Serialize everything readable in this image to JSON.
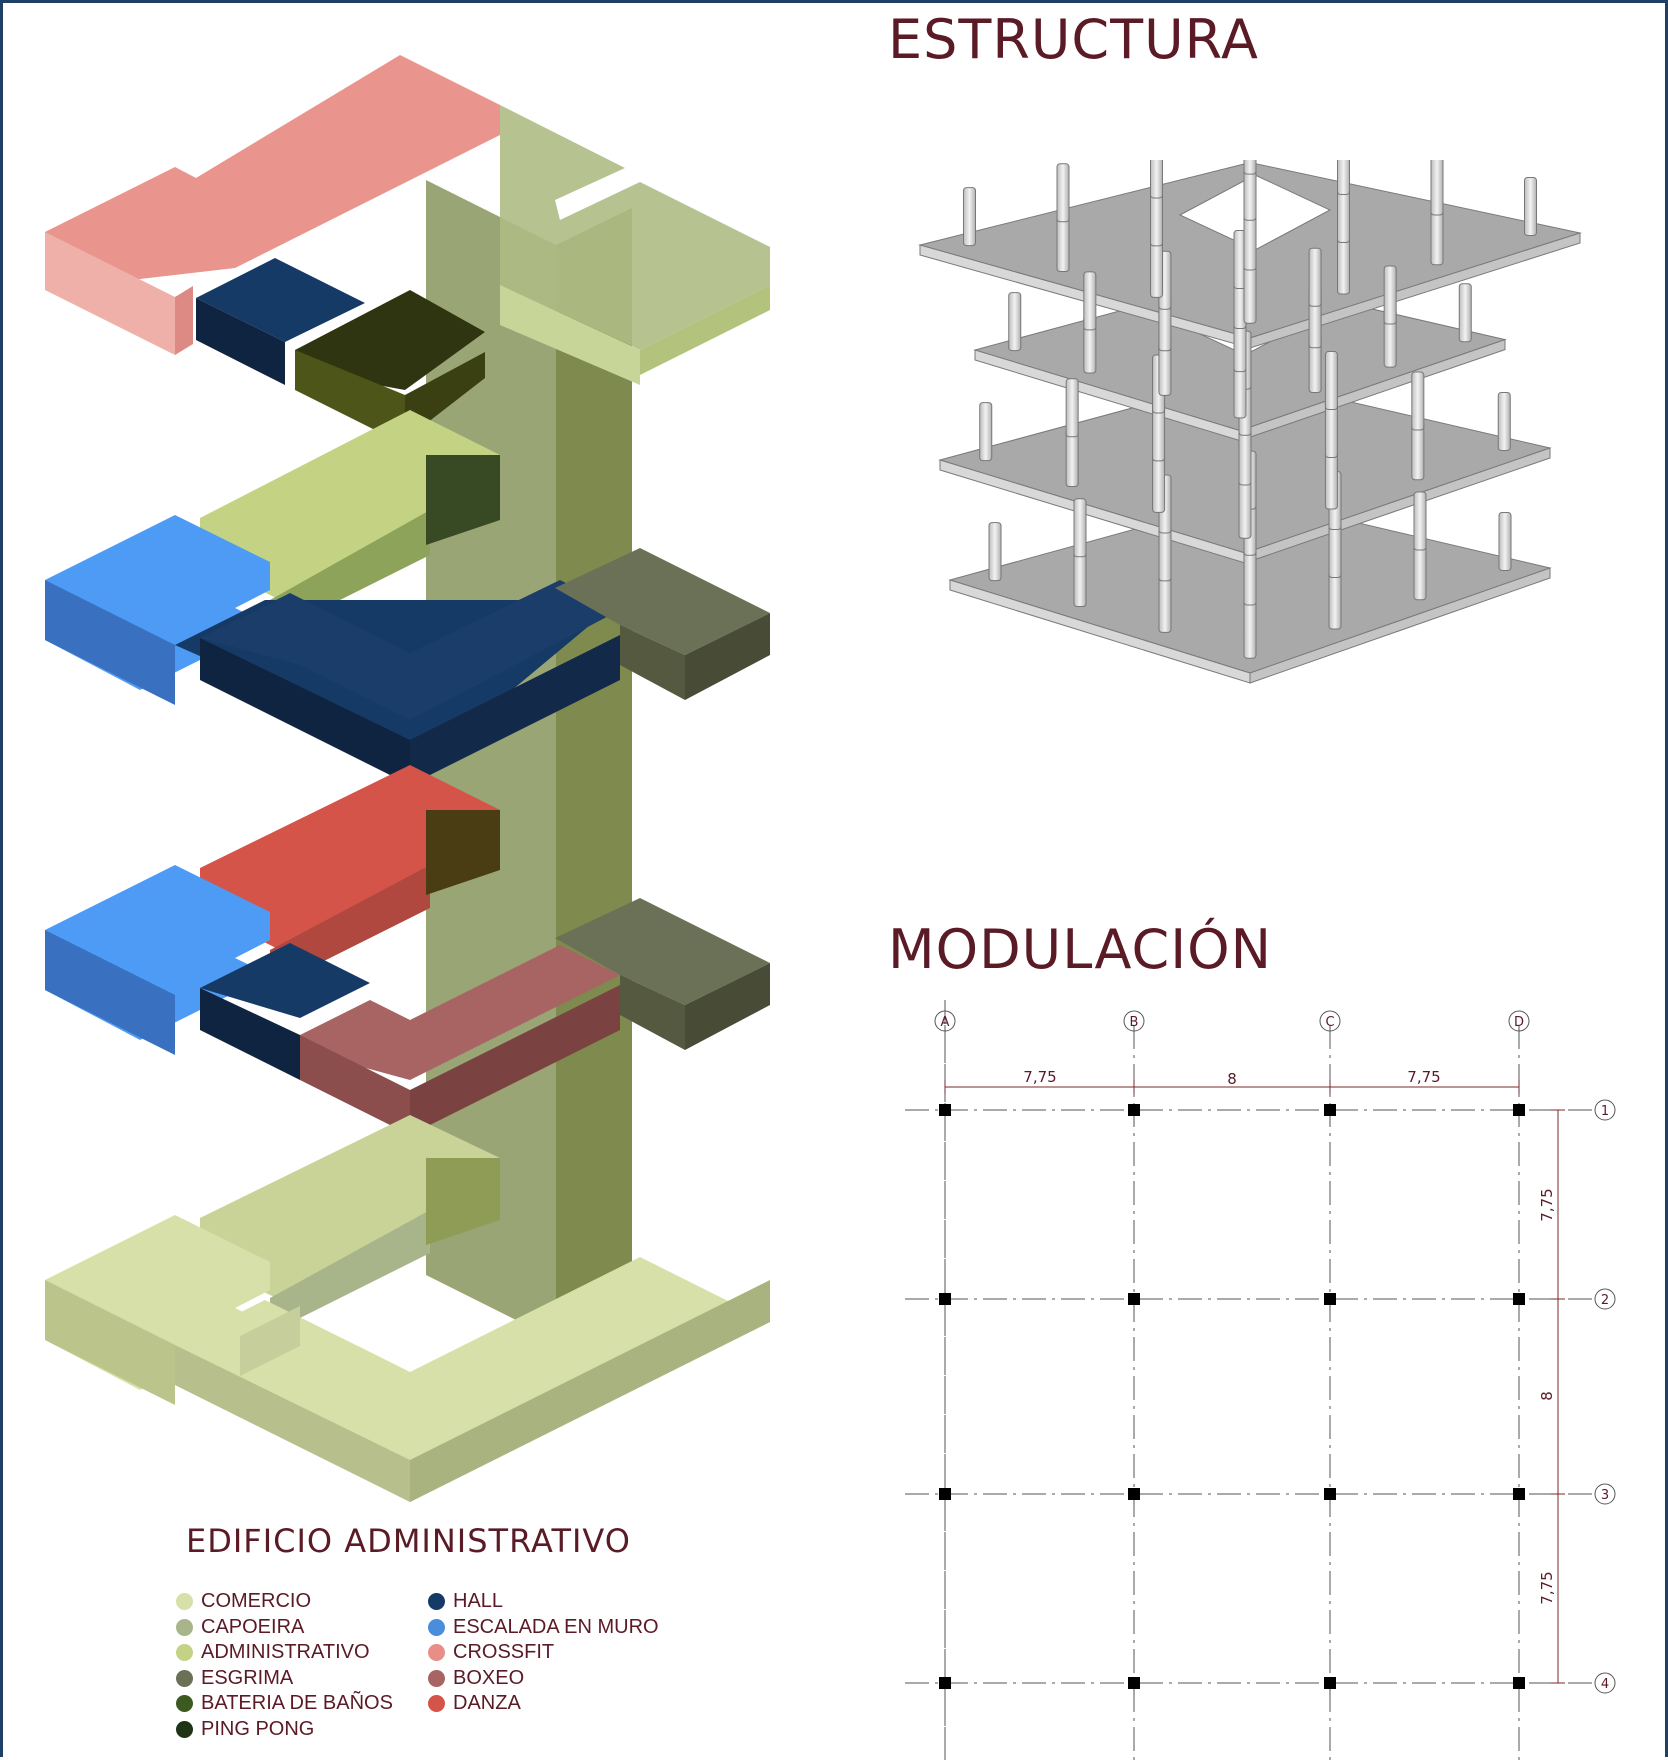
{
  "titles": {
    "estructura": "ESTRUCTURA",
    "modulacion": "MODULACIÓN",
    "edificio": "EDIFICIO ADMINISTRATIVO"
  },
  "legend_left": [
    {
      "label": "COMERCIO",
      "color": "#d6e0a8"
    },
    {
      "label": "CAPOEIRA",
      "color": "#a8b58a"
    },
    {
      "label": "ADMINISTRATIVO",
      "color": "#c3d383"
    },
    {
      "label": "ESGRIMA",
      "color": "#6b7157"
    },
    {
      "label": "BATERIA DE BAÑOS",
      "color": "#3c5a20"
    },
    {
      "label": "PING PONG",
      "color": "#1f3317"
    }
  ],
  "legend_right": [
    {
      "label": "HALL",
      "color": "#163a66"
    },
    {
      "label": "ESCALADA EN MURO",
      "color": "#4a8edb"
    },
    {
      "label": "CROSSFIT",
      "color": "#e88e87"
    },
    {
      "label": "BOXEO",
      "color": "#a86462"
    },
    {
      "label": "DANZA",
      "color": "#d4544a"
    }
  ],
  "grid": {
    "columns": [
      "A",
      "B",
      "C",
      "D"
    ],
    "rows": [
      "1",
      "2",
      "3",
      "4"
    ],
    "column_spacings": [
      "7,75",
      "8",
      "7,75"
    ],
    "row_spacings": [
      "7,75",
      "8",
      "7,75"
    ]
  }
}
